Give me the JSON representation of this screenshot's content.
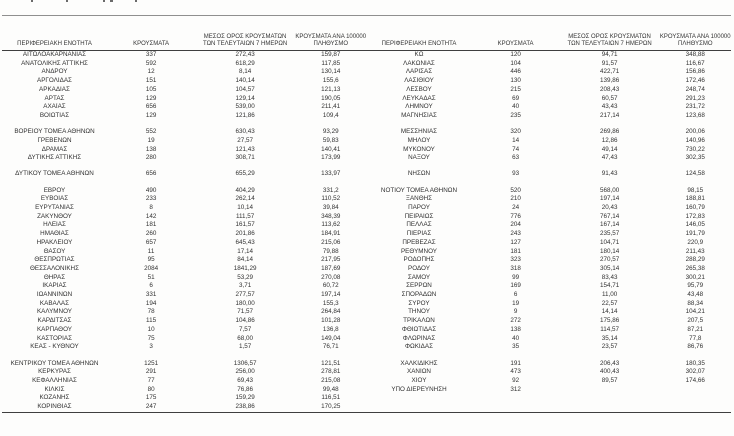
{
  "page": {
    "background": "#fdfdfc",
    "text_color": "#2f2f2f",
    "rule_top_color": "#8f8f8f",
    "rule_color": "#3f3f3f"
  },
  "table": {
    "column_headers": [
      {
        "key": "region",
        "lines": [
          "ΠΕΡΙΦΕΡΕΙΑΚΗ ΕΝΟΤΗΤΑ"
        ]
      },
      {
        "key": "cases",
        "lines": [
          "ΚΡΟΥΣΜΑΤΑ"
        ]
      },
      {
        "key": "avg7",
        "lines": [
          "ΜΕΣΟΣ ΟΡΟΣ ΚΡΟΥΣΜΑΤΩΝ",
          "ΤΩΝ ΤΕΛΕΥΤΑΙΩΝ 7 ΗΜΕΡΩΝ"
        ]
      },
      {
        "key": "per100k",
        "lines": [
          "ΚΡΟΥΣΜΑΤΑ ΑΝΑ 100000",
          "ΠΛΗΘΥΣΜΟ"
        ]
      }
    ],
    "left_rows": [
      [
        "ΑΙΤΩΛΟΑΚΑΡΝΑΝΙΑΣ",
        "337",
        "272,43",
        "159,87"
      ],
      [
        "ΑΝΑΤΟΛΙΚΗΣ ΑΤΤΙΚΗΣ",
        "592",
        "618,29",
        "117,85"
      ],
      [
        "ΑΝΔΡΟΥ",
        "12",
        "8,14",
        "130,14"
      ],
      [
        "ΑΡΓΟΛΙΔΑΣ",
        "151",
        "140,14",
        "155,6"
      ],
      [
        "ΑΡΚΑΔΙΑΣ",
        "105",
        "104,57",
        "121,13"
      ],
      [
        "ΑΡΤΑΣ",
        "129",
        "129,14",
        "190,05"
      ],
      [
        "ΑΧΑΪΑΣ",
        "656",
        "539,00",
        "211,41"
      ],
      [
        "ΒΟΙΩΤΙΑΣ",
        "129",
        "121,86",
        "109,4"
      ],
      null,
      [
        "ΒΟΡΕΙΟΥ ΤΟΜΕΑ ΑΘΗΝΩΝ",
        "552",
        "630,43",
        "93,29"
      ],
      [
        "ΓΡΕΒΕΝΩΝ",
        "19",
        "27,57",
        "59,83"
      ],
      [
        "ΔΡΑΜΑΣ",
        "138",
        "121,43",
        "140,41"
      ],
      [
        "ΔΥΤΙΚΗΣ ΑΤΤΙΚΗΣ",
        "280",
        "308,71",
        "173,99"
      ],
      null,
      [
        "ΔΥΤΙΚΟΥ ΤΟΜΕΑ ΑΘΗΝΩΝ",
        "656",
        "655,29",
        "133,97"
      ],
      null,
      [
        "ΕΒΡΟΥ",
        "490",
        "404,29",
        "331,2"
      ],
      [
        "ΕΥΒΟΙΑΣ",
        "233",
        "262,14",
        "110,52"
      ],
      [
        "ΕΥΡΥΤΑΝΙΑΣ",
        "8",
        "10,14",
        "39,84"
      ],
      [
        "ΖΑΚΥΝΘΟΥ",
        "142",
        "111,57",
        "348,39"
      ],
      [
        "ΗΛΕΙΑΣ",
        "181",
        "161,57",
        "113,62"
      ],
      [
        "ΗΜΑΘΙΑΣ",
        "260",
        "201,86",
        "184,91"
      ],
      [
        "ΗΡΑΚΛΕΙΟΥ",
        "657",
        "645,43",
        "215,06"
      ],
      [
        "ΘΑΣΟΥ",
        "11",
        "17,14",
        "79,88"
      ],
      [
        "ΘΕΣΠΡΩΤΙΑΣ",
        "95",
        "84,14",
        "217,95"
      ],
      [
        "ΘΕΣΣΑΛΟΝΙΚΗΣ",
        "2084",
        "1841,29",
        "187,69"
      ],
      [
        "ΘΗΡΑΣ",
        "51",
        "53,29",
        "270,08"
      ],
      [
        "ΙΚΑΡΙΑΣ",
        "6",
        "3,71",
        "60,72"
      ],
      [
        "ΙΩΑΝΝΙΝΩΝ",
        "331",
        "277,57",
        "197,14"
      ],
      [
        "ΚΑΒΑΛΑΣ",
        "194",
        "180,00",
        "155,3"
      ],
      [
        "ΚΑΛΥΜΝΟΥ",
        "78",
        "71,57",
        "264,84"
      ],
      [
        "ΚΑΡΔΙΤΣΑΣ",
        "115",
        "104,86",
        "101,28"
      ],
      [
        "ΚΑΡΠΑΘΟΥ",
        "10",
        "7,57",
        "136,8"
      ],
      [
        "ΚΑΣΤΟΡΙΑΣ",
        "75",
        "68,00",
        "149,04"
      ],
      [
        "ΚΕΑΣ - ΚΥΘΝΟΥ",
        "3",
        "1,57",
        "76,71"
      ],
      null,
      [
        "ΚΕΝΤΡΙΚΟΥ ΤΟΜΕΑ ΑΘΗΝΩΝ",
        "1251",
        "1306,57",
        "121,51"
      ],
      [
        "ΚΕΡΚΥΡΑΣ",
        "291",
        "256,00",
        "278,81"
      ],
      [
        "ΚΕΦΑΛΛΗΝΙΑΣ",
        "77",
        "69,43",
        "215,08"
      ],
      [
        "ΚΙΛΚΙΣ",
        "80",
        "76,86",
        "99,48"
      ],
      [
        "ΚΟΖΑΝΗΣ",
        "175",
        "159,29",
        "116,51"
      ],
      [
        "ΚΟΡΙΝΘΙΑΣ",
        "247",
        "238,86",
        "170,25"
      ]
    ],
    "right_rows": [
      [
        "ΚΩ",
        "120",
        "94,71",
        "348,88"
      ],
      [
        "ΛΑΚΩΝΙΑΣ",
        "104",
        "91,57",
        "116,67"
      ],
      [
        "ΛΑΡΙΣΑΣ",
        "446",
        "422,71",
        "156,86"
      ],
      [
        "ΛΑΣΙΘΙΟΥ",
        "130",
        "139,86",
        "172,46"
      ],
      [
        "ΛΕΣΒΟΥ",
        "215",
        "208,43",
        "248,74"
      ],
      [
        "ΛΕΥΚΑΔΑΣ",
        "69",
        "60,57",
        "291,23"
      ],
      [
        "ΛΗΜΝΟΥ",
        "40",
        "43,43",
        "231,72"
      ],
      [
        "ΜΑΓΝΗΣΙΑΣ",
        "235",
        "217,14",
        "123,68"
      ],
      null,
      [
        "ΜΕΣΣΗΝΙΑΣ",
        "320",
        "269,86",
        "200,06"
      ],
      [
        "ΜΗΛΟΥ",
        "14",
        "12,86",
        "140,96"
      ],
      [
        "ΜΥΚΟΝΟΥ",
        "74",
        "49,14",
        "730,22"
      ],
      [
        "ΝΑΞΟΥ",
        "63",
        "47,43",
        "302,35"
      ],
      null,
      [
        "ΝΗΣΩΝ",
        "93",
        "91,43",
        "124,58"
      ],
      null,
      [
        "ΝΟΤΙΟΥ ΤΟΜΕΑ ΑΘΗΝΩΝ",
        "520",
        "568,00",
        "98,15"
      ],
      [
        "ΞΑΝΘΗΣ",
        "210",
        "197,14",
        "188,81"
      ],
      [
        "ΠΑΡΟΥ",
        "24",
        "20,43",
        "160,79"
      ],
      [
        "ΠΕΙΡΑΙΩΣ",
        "776",
        "767,14",
        "172,83"
      ],
      [
        "ΠΕΛΛΑΣ",
        "204",
        "167,14",
        "146,05"
      ],
      [
        "ΠΙΕΡΙΑΣ",
        "243",
        "235,57",
        "191,79"
      ],
      [
        "ΠΡΕΒΕΖΑΣ",
        "127",
        "104,71",
        "220,9"
      ],
      [
        "ΡΕΘΥΜΝΟΥ",
        "181",
        "180,14",
        "211,43"
      ],
      [
        "ΡΟΔΟΠΗΣ",
        "323",
        "270,57",
        "288,29"
      ],
      [
        "ΡΟΔΟΥ",
        "318",
        "305,14",
        "265,38"
      ],
      [
        "ΣΑΜΟΥ",
        "99",
        "83,43",
        "300,21"
      ],
      [
        "ΣΕΡΡΩΝ",
        "169",
        "154,71",
        "95,79"
      ],
      [
        "ΣΠΟΡΑΔΩΝ",
        "6",
        "11,00",
        "43,48"
      ],
      [
        "ΣΥΡΟΥ",
        "19",
        "22,57",
        "88,34"
      ],
      [
        "ΤΗΝΟΥ",
        "9",
        "14,14",
        "104,21"
      ],
      [
        "ΤΡΙΚΑΛΩΝ",
        "272",
        "175,86",
        "207,5"
      ],
      [
        "ΦΘΙΩΤΙΔΑΣ",
        "138",
        "114,57",
        "87,21"
      ],
      [
        "ΦΛΩΡΙΝΑΣ",
        "40",
        "35,14",
        "77,8"
      ],
      [
        "ΦΩΚΙΔΑΣ",
        "35",
        "23,57",
        "86,76"
      ],
      null,
      [
        "ΧΑΛΚΙΔΙΚΗΣ",
        "191",
        "206,43",
        "180,35"
      ],
      [
        "ΧΑΝΙΩΝ",
        "473",
        "400,43",
        "302,07"
      ],
      [
        "ΧΙΟΥ",
        "92",
        "89,57",
        "174,66"
      ],
      [
        "ΥΠΟ ΔΙΕΡΕΥΝΗΣΗ",
        "312",
        "",
        ""
      ]
    ]
  }
}
